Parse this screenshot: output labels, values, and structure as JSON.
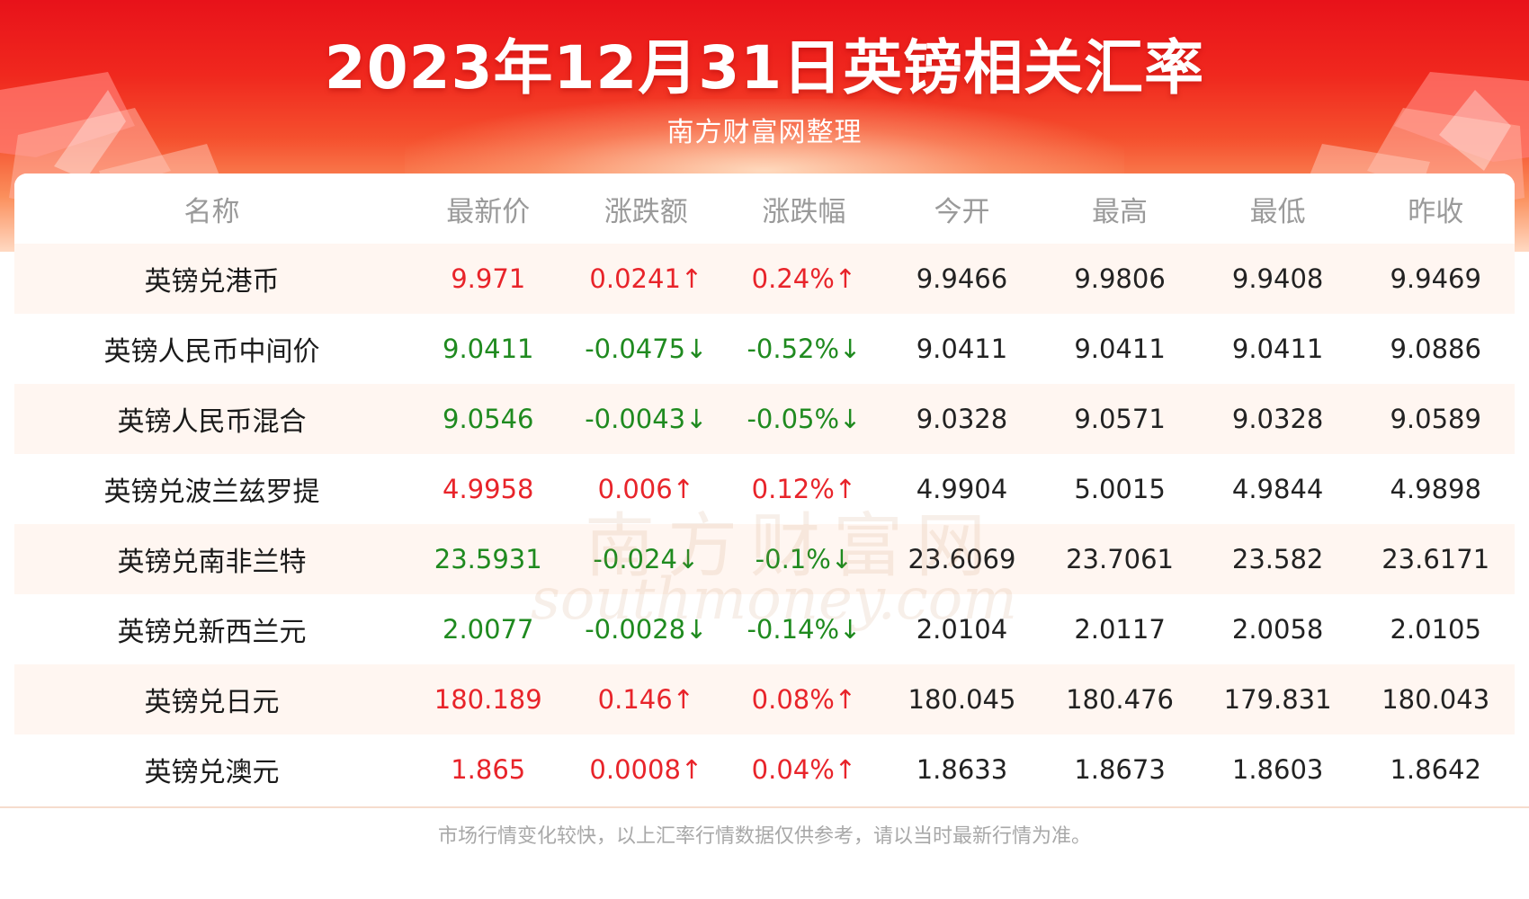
{
  "header": {
    "title": "2023年12月31日英镑相关汇率",
    "subtitle": "南方财富网整理"
  },
  "table": {
    "columns": [
      "名称",
      "最新价",
      "涨跌额",
      "涨跌幅",
      "今开",
      "最高",
      "最低",
      "昨收"
    ],
    "rows": [
      {
        "name": "英镑兑港币",
        "latest": "9.971",
        "change": "0.0241↑",
        "pct": "0.24%↑",
        "open": "9.9466",
        "high": "9.9806",
        "low": "9.9408",
        "prev": "9.9469",
        "dir": "up"
      },
      {
        "name": "英镑人民币中间价",
        "latest": "9.0411",
        "change": "-0.0475↓",
        "pct": "-0.52%↓",
        "open": "9.0411",
        "high": "9.0411",
        "low": "9.0411",
        "prev": "9.0886",
        "dir": "down"
      },
      {
        "name": "英镑人民币混合",
        "latest": "9.0546",
        "change": "-0.0043↓",
        "pct": "-0.05%↓",
        "open": "9.0328",
        "high": "9.0571",
        "low": "9.0328",
        "prev": "9.0589",
        "dir": "down"
      },
      {
        "name": "英镑兑波兰兹罗提",
        "latest": "4.9958",
        "change": "0.006↑",
        "pct": "0.12%↑",
        "open": "4.9904",
        "high": "5.0015",
        "low": "4.9844",
        "prev": "4.9898",
        "dir": "up"
      },
      {
        "name": "英镑兑南非兰特",
        "latest": "23.5931",
        "change": "-0.024↓",
        "pct": "-0.1%↓",
        "open": "23.6069",
        "high": "23.7061",
        "low": "23.582",
        "prev": "23.6171",
        "dir": "down"
      },
      {
        "name": "英镑兑新西兰元",
        "latest": "2.0077",
        "change": "-0.0028↓",
        "pct": "-0.14%↓",
        "open": "2.0104",
        "high": "2.0117",
        "low": "2.0058",
        "prev": "2.0105",
        "dir": "down"
      },
      {
        "name": "英镑兑日元",
        "latest": "180.189",
        "change": "0.146↑",
        "pct": "0.08%↑",
        "open": "180.045",
        "high": "180.476",
        "low": "179.831",
        "prev": "180.043",
        "dir": "up"
      },
      {
        "name": "英镑兑澳元",
        "latest": "1.865",
        "change": "0.0008↑",
        "pct": "0.04%↑",
        "open": "1.8633",
        "high": "1.8673",
        "low": "1.8603",
        "prev": "1.8642",
        "dir": "up"
      }
    ]
  },
  "watermark": {
    "cn": "南方财富网",
    "en": "southmoney.com"
  },
  "footer": {
    "note": "市场行情变化较快，以上汇率行情数据仅供参考，请以当时最新行情为准。"
  },
  "colors": {
    "up": "#e8242a",
    "down": "#1f8a1f",
    "header_red": "#e8121a"
  }
}
